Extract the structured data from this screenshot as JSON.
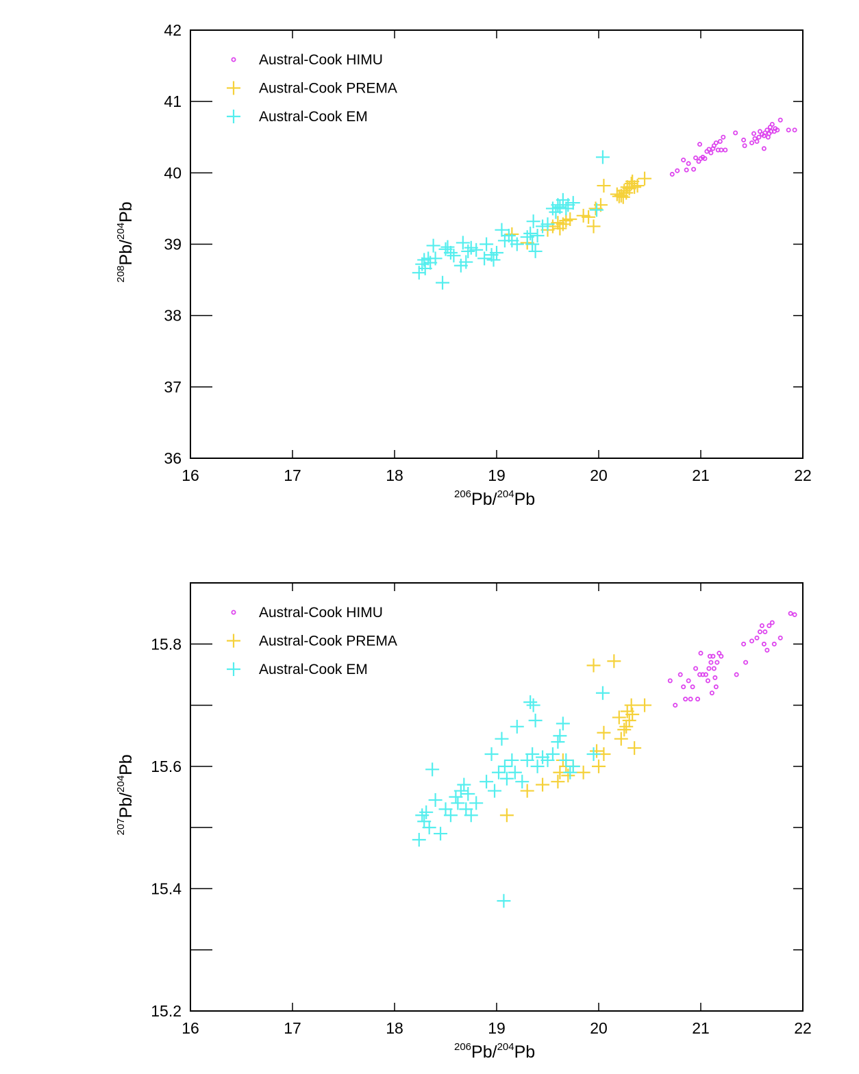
{
  "colors": {
    "himu": "#dd44ee",
    "prema": "#f5d13a",
    "em": "#55eeee"
  },
  "chart_data": [
    {
      "type": "scatter",
      "xlim": [
        16,
        22
      ],
      "ylim": [
        36,
        42
      ],
      "xticks": [
        "16",
        "17",
        "18",
        "19",
        "20",
        "21",
        "22"
      ],
      "yticks": [
        "36",
        "37",
        "38",
        "39",
        "40",
        "41",
        "42"
      ],
      "xlabel": {
        "sup1": "206",
        "base1": "Pb/",
        "sup2": "204",
        "base2": "Pb"
      },
      "ylabel": {
        "sup1": "208",
        "base1": "Pb/",
        "sup2": "204",
        "base2": "Pb"
      },
      "legend_position": "top-left",
      "series": [
        {
          "name": "Austral-Cook HIMU",
          "marker": "circle",
          "color": "#dd44ee",
          "points": [
            [
              20.72,
              39.98
            ],
            [
              20.77,
              40.03
            ],
            [
              20.83,
              40.18
            ],
            [
              20.86,
              40.04
            ],
            [
              20.88,
              40.13
            ],
            [
              20.93,
              40.05
            ],
            [
              20.95,
              40.21
            ],
            [
              20.98,
              40.16
            ],
            [
              20.99,
              40.4
            ],
            [
              21.0,
              40.2
            ],
            [
              21.02,
              40.22
            ],
            [
              21.04,
              40.2
            ],
            [
              21.06,
              40.3
            ],
            [
              21.08,
              40.33
            ],
            [
              21.1,
              40.28
            ],
            [
              21.12,
              40.34
            ],
            [
              21.13,
              40.38
            ],
            [
              21.15,
              40.42
            ],
            [
              21.17,
              40.32
            ],
            [
              21.19,
              40.44
            ],
            [
              21.2,
              40.32
            ],
            [
              21.22,
              40.5
            ],
            [
              21.24,
              40.32
            ],
            [
              21.34,
              40.56
            ],
            [
              21.42,
              40.46
            ],
            [
              21.43,
              40.38
            ],
            [
              21.5,
              40.42
            ],
            [
              21.53,
              40.48
            ],
            [
              21.55,
              40.44
            ],
            [
              21.57,
              40.5
            ],
            [
              21.6,
              40.54
            ],
            [
              21.62,
              40.52
            ],
            [
              21.63,
              40.56
            ],
            [
              21.65,
              40.6
            ],
            [
              21.66,
              40.5
            ],
            [
              21.67,
              40.55
            ],
            [
              21.68,
              40.64
            ],
            [
              21.69,
              40.58
            ],
            [
              21.7,
              40.68
            ],
            [
              21.72,
              40.58
            ],
            [
              21.73,
              40.62
            ],
            [
              21.75,
              40.6
            ],
            [
              21.78,
              40.74
            ],
            [
              21.86,
              40.6
            ],
            [
              21.92,
              40.6
            ],
            [
              21.62,
              40.34
            ],
            [
              21.52,
              40.55
            ],
            [
              21.58,
              40.58
            ]
          ]
        },
        {
          "name": "Austral-Cook PREMA",
          "marker": "plus",
          "color": "#f5d13a",
          "points": [
            [
              19.15,
              39.14
            ],
            [
              19.3,
              39.02
            ],
            [
              19.5,
              39.2
            ],
            [
              19.55,
              39.25
            ],
            [
              19.6,
              39.3
            ],
            [
              19.62,
              39.22
            ],
            [
              19.65,
              39.28
            ],
            [
              19.68,
              39.33
            ],
            [
              19.72,
              39.35
            ],
            [
              19.85,
              39.4
            ],
            [
              19.9,
              39.38
            ],
            [
              19.95,
              39.25
            ],
            [
              19.97,
              39.5
            ],
            [
              20.02,
              39.55
            ],
            [
              20.05,
              39.82
            ],
            [
              20.18,
              39.7
            ],
            [
              20.22,
              39.68
            ],
            [
              20.25,
              39.75
            ],
            [
              20.27,
              39.72
            ],
            [
              20.28,
              39.8
            ],
            [
              20.3,
              39.78
            ],
            [
              20.32,
              39.85
            ],
            [
              20.33,
              39.88
            ],
            [
              20.35,
              39.8
            ],
            [
              20.38,
              39.82
            ],
            [
              20.45,
              39.92
            ],
            [
              20.2,
              39.67
            ],
            [
              20.24,
              39.66
            ]
          ]
        },
        {
          "name": "Austral-Cook EM",
          "marker": "plus",
          "color": "#55eeee",
          "points": [
            [
              18.24,
              38.6
            ],
            [
              18.27,
              38.72
            ],
            [
              18.29,
              38.78
            ],
            [
              18.3,
              38.66
            ],
            [
              18.33,
              38.8
            ],
            [
              18.35,
              38.74
            ],
            [
              18.38,
              38.98
            ],
            [
              18.4,
              38.8
            ],
            [
              18.47,
              38.46
            ],
            [
              18.5,
              38.93
            ],
            [
              18.52,
              38.96
            ],
            [
              18.55,
              38.88
            ],
            [
              18.58,
              38.84
            ],
            [
              18.65,
              38.7
            ],
            [
              18.67,
              39.02
            ],
            [
              18.7,
              38.75
            ],
            [
              18.72,
              38.9
            ],
            [
              18.75,
              38.95
            ],
            [
              18.8,
              38.92
            ],
            [
              18.88,
              38.8
            ],
            [
              18.9,
              39.0
            ],
            [
              18.95,
              38.85
            ],
            [
              18.97,
              38.78
            ],
            [
              19.0,
              38.88
            ],
            [
              19.05,
              39.2
            ],
            [
              19.08,
              39.05
            ],
            [
              19.12,
              39.12
            ],
            [
              19.15,
              39.05
            ],
            [
              19.2,
              39.0
            ],
            [
              19.3,
              39.1
            ],
            [
              19.33,
              39.15
            ],
            [
              19.35,
              39.0
            ],
            [
              19.36,
              39.32
            ],
            [
              19.38,
              38.9
            ],
            [
              19.4,
              39.12
            ],
            [
              19.45,
              39.25
            ],
            [
              19.5,
              39.28
            ],
            [
              19.55,
              39.5
            ],
            [
              19.58,
              39.45
            ],
            [
              19.6,
              39.55
            ],
            [
              19.62,
              39.52
            ],
            [
              19.65,
              39.62
            ],
            [
              19.68,
              39.5
            ],
            [
              19.7,
              39.55
            ],
            [
              19.75,
              39.58
            ],
            [
              19.98,
              39.48
            ],
            [
              20.04,
              40.22
            ]
          ]
        }
      ]
    },
    {
      "type": "scatter",
      "xlim": [
        16,
        22
      ],
      "ylim": [
        15.2,
        15.9
      ],
      "xticks": [
        "16",
        "17",
        "18",
        "19",
        "20",
        "21",
        "22"
      ],
      "yticks": [
        "15.2",
        "",
        "15.4",
        "",
        "15.6",
        "",
        "15.8",
        ""
      ],
      "xlabel": {
        "sup1": "206",
        "base1": "Pb/",
        "sup2": "204",
        "base2": "Pb"
      },
      "ylabel": {
        "sup1": "207",
        "base1": "Pb/",
        "sup2": "204",
        "base2": "Pb"
      },
      "legend_position": "top-left",
      "series": [
        {
          "name": "Austral-Cook HIMU",
          "marker": "circle",
          "color": "#dd44ee",
          "points": [
            [
              20.7,
              15.74
            ],
            [
              20.75,
              15.7
            ],
            [
              20.8,
              15.75
            ],
            [
              20.83,
              15.73
            ],
            [
              20.85,
              15.71
            ],
            [
              20.88,
              15.74
            ],
            [
              20.9,
              15.71
            ],
            [
              20.92,
              15.73
            ],
            [
              20.95,
              15.76
            ],
            [
              20.97,
              15.71
            ],
            [
              20.99,
              15.75
            ],
            [
              21.0,
              15.785
            ],
            [
              21.02,
              15.75
            ],
            [
              21.05,
              15.75
            ],
            [
              21.07,
              15.74
            ],
            [
              21.08,
              15.76
            ],
            [
              21.09,
              15.78
            ],
            [
              21.1,
              15.77
            ],
            [
              21.11,
              15.72
            ],
            [
              21.12,
              15.78
            ],
            [
              21.13,
              15.76
            ],
            [
              21.14,
              15.745
            ],
            [
              21.15,
              15.73
            ],
            [
              21.16,
              15.77
            ],
            [
              21.18,
              15.785
            ],
            [
              21.2,
              15.78
            ],
            [
              21.35,
              15.75
            ],
            [
              21.42,
              15.8
            ],
            [
              21.44,
              15.77
            ],
            [
              21.5,
              15.805
            ],
            [
              21.55,
              15.81
            ],
            [
              21.58,
              15.82
            ],
            [
              21.6,
              15.83
            ],
            [
              21.62,
              15.8
            ],
            [
              21.63,
              15.82
            ],
            [
              21.65,
              15.79
            ],
            [
              21.67,
              15.83
            ],
            [
              21.7,
              15.835
            ],
            [
              21.72,
              15.8
            ],
            [
              21.78,
              15.81
            ],
            [
              21.88,
              15.85
            ],
            [
              21.92,
              15.848
            ]
          ]
        },
        {
          "name": "Austral-Cook PREMA",
          "marker": "plus",
          "color": "#f5d13a",
          "points": [
            [
              19.1,
              15.52
            ],
            [
              19.3,
              15.56
            ],
            [
              19.45,
              15.57
            ],
            [
              19.6,
              15.575
            ],
            [
              19.62,
              15.59
            ],
            [
              19.65,
              15.61
            ],
            [
              19.68,
              15.6
            ],
            [
              19.7,
              15.585
            ],
            [
              19.75,
              15.6
            ],
            [
              19.85,
              15.59
            ],
            [
              19.95,
              15.765
            ],
            [
              19.98,
              15.625
            ],
            [
              20.0,
              15.6
            ],
            [
              20.05,
              15.62
            ],
            [
              20.05,
              15.655
            ],
            [
              20.15,
              15.772
            ],
            [
              20.2,
              15.68
            ],
            [
              20.22,
              15.645
            ],
            [
              20.25,
              15.66
            ],
            [
              20.27,
              15.665
            ],
            [
              20.28,
              15.69
            ],
            [
              20.3,
              15.675
            ],
            [
              20.32,
              15.7
            ],
            [
              20.33,
              15.685
            ],
            [
              20.35,
              15.63
            ],
            [
              20.45,
              15.7
            ]
          ]
        },
        {
          "name": "Austral-Cook EM",
          "marker": "plus",
          "color": "#55eeee",
          "points": [
            [
              18.24,
              15.48
            ],
            [
              18.27,
              15.52
            ],
            [
              18.29,
              15.51
            ],
            [
              18.31,
              15.525
            ],
            [
              18.34,
              15.5
            ],
            [
              18.37,
              15.595
            ],
            [
              18.4,
              15.545
            ],
            [
              18.45,
              15.49
            ],
            [
              18.5,
              15.53
            ],
            [
              18.55,
              15.52
            ],
            [
              18.6,
              15.55
            ],
            [
              18.62,
              15.54
            ],
            [
              18.65,
              15.56
            ],
            [
              18.68,
              15.57
            ],
            [
              18.7,
              15.53
            ],
            [
              18.72,
              15.555
            ],
            [
              18.75,
              15.52
            ],
            [
              18.8,
              15.54
            ],
            [
              18.9,
              15.575
            ],
            [
              18.95,
              15.62
            ],
            [
              18.98,
              15.56
            ],
            [
              19.02,
              15.59
            ],
            [
              19.05,
              15.645
            ],
            [
              19.08,
              15.6
            ],
            [
              19.1,
              15.58
            ],
            [
              19.15,
              15.61
            ],
            [
              19.18,
              15.59
            ],
            [
              19.2,
              15.665
            ],
            [
              19.25,
              15.575
            ],
            [
              19.3,
              15.61
            ],
            [
              19.33,
              15.705
            ],
            [
              19.35,
              15.62
            ],
            [
              19.36,
              15.7
            ],
            [
              19.38,
              15.675
            ],
            [
              19.4,
              15.6
            ],
            [
              19.45,
              15.615
            ],
            [
              19.5,
              15.61
            ],
            [
              19.55,
              15.62
            ],
            [
              19.6,
              15.64
            ],
            [
              19.62,
              15.65
            ],
            [
              19.65,
              15.67
            ],
            [
              19.68,
              15.61
            ],
            [
              19.72,
              15.59
            ],
            [
              19.75,
              15.6
            ],
            [
              19.95,
              15.62
            ],
            [
              20.04,
              15.72
            ],
            [
              19.07,
              15.38
            ]
          ]
        }
      ]
    }
  ]
}
